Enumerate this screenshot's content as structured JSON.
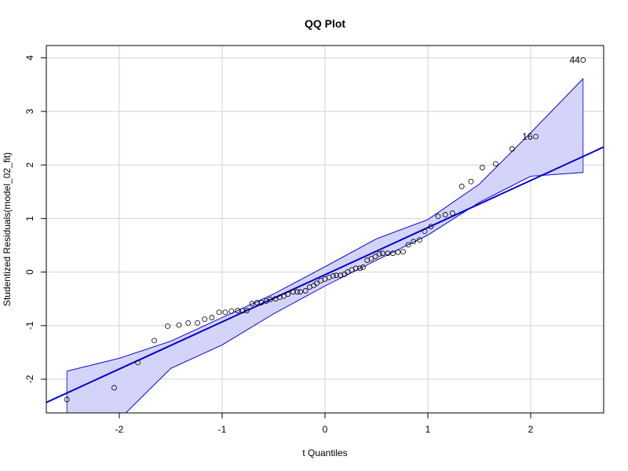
{
  "chart_data": {
    "type": "qq",
    "title": "QQ Plot",
    "x_label": "t Quantiles",
    "y_label": "Studentized Residuals(model_02_fit)",
    "x": [
      -2.51,
      -2.05,
      -1.82,
      -1.66,
      -1.53,
      -1.42,
      -1.33,
      -1.24,
      -1.17,
      -1.1,
      -1.03,
      -0.97,
      -0.91,
      -0.85,
      -0.8,
      -0.76,
      -0.71,
      -0.66,
      -0.62,
      -0.57,
      -0.53,
      -0.48,
      -0.44,
      -0.4,
      -0.36,
      -0.31,
      -0.27,
      -0.24,
      -0.19,
      -0.15,
      -0.11,
      -0.08,
      -0.04,
      0,
      0.04,
      0.08,
      0.11,
      0.15,
      0.19,
      0.22,
      0.26,
      0.3,
      0.34,
      0.37,
      0.41,
      0.45,
      0.49,
      0.53,
      0.56,
      0.61,
      0.66,
      0.71,
      0.76,
      0.81,
      0.86,
      0.92,
      0.97,
      1.03,
      1.1,
      1.17,
      1.24,
      1.33,
      1.42,
      1.53,
      1.66,
      1.82,
      2.05,
      2.51
    ],
    "y": [
      -2.38,
      -2.16,
      -1.69,
      -1.28,
      -1.01,
      -0.99,
      -0.95,
      -0.95,
      -0.88,
      -0.85,
      -0.75,
      -0.75,
      -0.73,
      -0.72,
      -0.72,
      -0.72,
      -0.59,
      -0.57,
      -0.57,
      -0.54,
      -0.51,
      -0.5,
      -0.47,
      -0.45,
      -0.41,
      -0.37,
      -0.37,
      -0.37,
      -0.35,
      -0.28,
      -0.25,
      -0.21,
      -0.16,
      -0.13,
      -0.1,
      -0.07,
      -0.06,
      -0.06,
      -0.04,
      0,
      0.04,
      0.07,
      0.07,
      0.09,
      0.22,
      0.25,
      0.29,
      0.34,
      0.35,
      0.35,
      0.35,
      0.37,
      0.38,
      0.51,
      0.57,
      0.6,
      0.76,
      0.85,
      1.04,
      1.07,
      1.1,
      1.6,
      1.69,
      1.95,
      2.02,
      2.3,
      2.53,
      3.96
    ],
    "point_labels": [
      null,
      null,
      null,
      null,
      null,
      null,
      null,
      null,
      null,
      null,
      null,
      null,
      null,
      null,
      null,
      null,
      null,
      null,
      null,
      null,
      null,
      null,
      null,
      null,
      null,
      null,
      null,
      null,
      null,
      null,
      null,
      null,
      null,
      null,
      null,
      null,
      null,
      null,
      null,
      null,
      null,
      null,
      null,
      null,
      null,
      null,
      null,
      null,
      null,
      null,
      null,
      null,
      null,
      null,
      null,
      null,
      null,
      null,
      null,
      null,
      null,
      null,
      null,
      null,
      null,
      null,
      "16",
      "44"
    ],
    "point_color": "#000000",
    "reference_line": {
      "intercept": -0.05,
      "slope": 0.88,
      "color": "#0000cd"
    },
    "envelope": {
      "x": [
        -2.51,
        -2,
        -1.5,
        -1,
        -0.5,
        0,
        0.5,
        1,
        1.5,
        2,
        2.51
      ],
      "upper": [
        -1.85,
        -1.61,
        -1.29,
        -0.85,
        -0.41,
        0.1,
        0.62,
        0.98,
        1.64,
        2.6,
        3.61
      ],
      "lower": [
        -3.3,
        -2.75,
        -1.8,
        -1.36,
        -0.78,
        -0.26,
        0.22,
        0.69,
        1.3,
        1.79,
        1.86
      ],
      "fill": "#d4d4fb",
      "stroke": "#0000cd"
    },
    "xlim": [
      -2.71,
      2.71
    ],
    "ylim": [
      -2.63,
      4.23
    ],
    "xticks": [
      -2,
      -1,
      0,
      1,
      2
    ],
    "yticks": [
      -2,
      -1,
      0,
      1,
      2,
      3,
      4
    ],
    "grid": true
  }
}
